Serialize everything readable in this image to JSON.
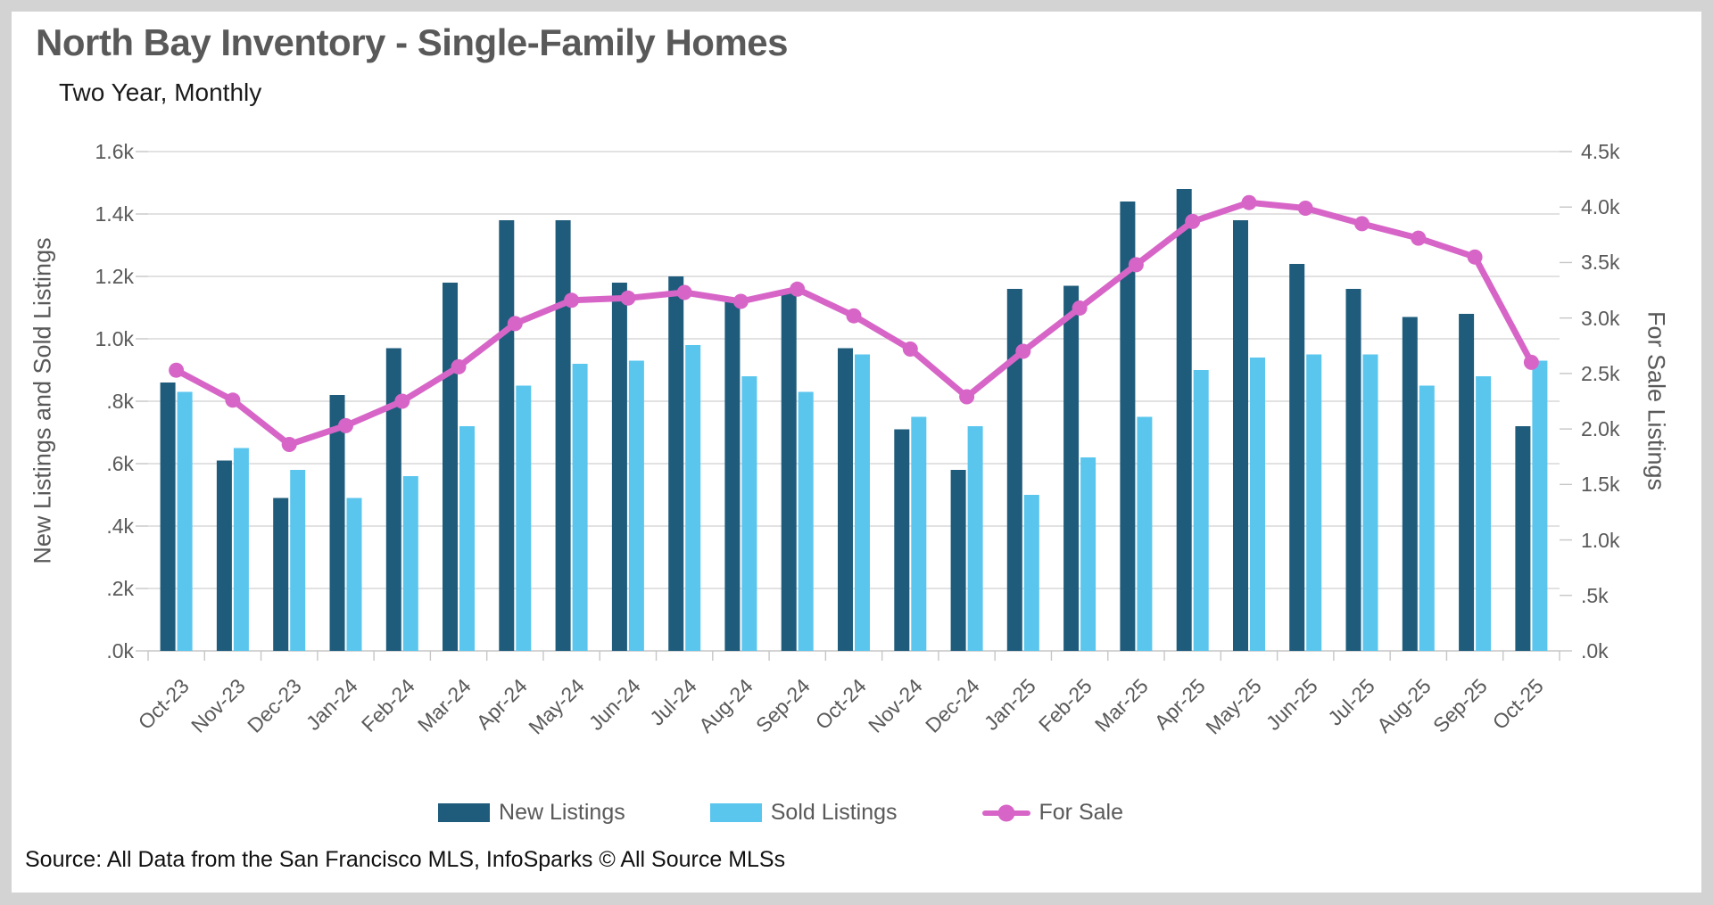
{
  "header": {
    "title": "North Bay Inventory - Single-Family Homes",
    "subtitle": "Two Year, Monthly"
  },
  "source_note": "Source: All Data from the San Francisco MLS, InfoSparks © All Source MLSs",
  "colors": {
    "new_listings": "#1f5c7c",
    "sold_listings": "#5ac6ee",
    "for_sale": "#d765c7",
    "gridline": "#d9d9d9",
    "axis_line": "#c6c6c6",
    "axis_text": "#595959",
    "title_text": "#595959",
    "frame": "#d3d3d3"
  },
  "chart_data": {
    "type": "bar",
    "subtype": "grouped bars with line overlay (dual axis)",
    "units": "thousands of listings (k)",
    "grid": true,
    "legend_position": "bottom",
    "categories": [
      "Oct-23",
      "Nov-23",
      "Dec-23",
      "Jan-24",
      "Feb-24",
      "Mar-24",
      "Apr-24",
      "May-24",
      "Jun-24",
      "Jul-24",
      "Aug-24",
      "Sep-24",
      "Oct-24",
      "Nov-24",
      "Dec-24",
      "Jan-25",
      "Feb-25",
      "Mar-25",
      "Apr-25",
      "May-25",
      "Jun-25",
      "Jul-25",
      "Aug-25",
      "Sep-25",
      "Oct-25"
    ],
    "series": [
      {
        "name": "New Listings",
        "type": "bar",
        "axis": "left",
        "color": "#1f5c7c",
        "values": [
          0.86,
          0.61,
          0.49,
          0.82,
          0.97,
          1.18,
          1.38,
          1.38,
          1.18,
          1.2,
          1.12,
          1.15,
          0.97,
          0.71,
          0.58,
          1.16,
          1.17,
          1.44,
          1.48,
          1.38,
          1.24,
          1.16,
          1.07,
          1.08,
          0.72
        ]
      },
      {
        "name": "Sold Listings",
        "type": "bar",
        "axis": "left",
        "color": "#5ac6ee",
        "values": [
          0.83,
          0.65,
          0.58,
          0.49,
          0.56,
          0.72,
          0.85,
          0.92,
          0.93,
          0.98,
          0.88,
          0.83,
          0.95,
          0.75,
          0.72,
          0.5,
          0.62,
          0.75,
          0.9,
          0.94,
          0.95,
          0.95,
          0.85,
          0.88,
          0.93
        ]
      },
      {
        "name": "For Sale",
        "type": "line",
        "axis": "right",
        "color": "#d765c7",
        "values": [
          2.53,
          2.26,
          1.86,
          2.03,
          2.25,
          2.56,
          2.95,
          3.16,
          3.18,
          3.23,
          3.15,
          3.26,
          3.02,
          2.72,
          2.29,
          2.7,
          3.09,
          3.48,
          3.87,
          4.04,
          3.99,
          3.85,
          3.72,
          3.55,
          2.6
        ]
      }
    ],
    "left_axis": {
      "label": "New Listings and Sold Listings",
      "min": 0,
      "max": 1.6,
      "step": 0.2,
      "tick_labels": [
        "1.6k",
        "1.4k",
        "1.2k",
        "1.0k",
        ".8k",
        ".6k",
        ".4k",
        ".2k",
        ".0k"
      ]
    },
    "right_axis": {
      "label": "For Sale Listings",
      "min": 0,
      "max": 4.5,
      "step": 0.5,
      "tick_labels": [
        "4.5k",
        "4.0k",
        "3.5k",
        "3.0k",
        "2.5k",
        "2.0k",
        "1.5k",
        "1.0k",
        ".5k",
        ".0k"
      ]
    }
  }
}
